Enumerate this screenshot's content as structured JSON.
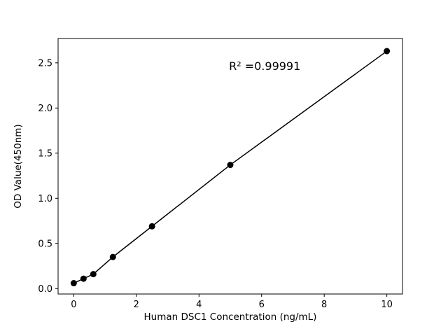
{
  "chart_data": {
    "type": "scatter",
    "title": "",
    "xlabel": "Human DSC1 Concentration (ng/mL)",
    "ylabel": "OD Value(450nm)",
    "annotation": "R² =0.99991",
    "annotation_pos": [
      0.6,
      0.877
    ],
    "x": [
      0,
      0.3125,
      0.625,
      1.25,
      2.5,
      5,
      10
    ],
    "y": [
      0.06,
      0.11,
      0.16,
      0.35,
      0.69,
      1.37,
      2.63
    ],
    "xlim": [
      -0.5,
      10.5
    ],
    "ylim": [
      -0.06,
      2.77
    ],
    "xticks": [
      0,
      2,
      4,
      6,
      8,
      10
    ],
    "yticks": [
      0.0,
      0.5,
      1.0,
      1.5,
      2.0,
      2.5
    ],
    "ytick_decimals": 1,
    "xtick_decimals": 0,
    "line": true,
    "grid": false,
    "legend": null,
    "marker_color": "#000000",
    "line_color": "#000000",
    "frame_color": "#000000",
    "background_color": "#ffffff"
  }
}
